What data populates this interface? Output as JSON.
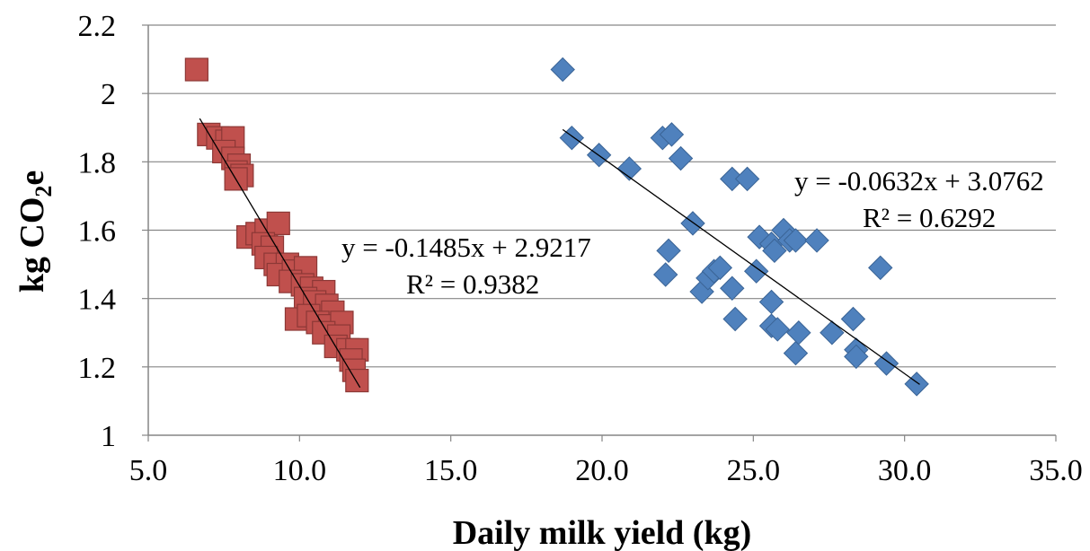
{
  "chart_data": {
    "type": "scatter",
    "xlabel": "Daily milk yield (kg)",
    "ylabel": {
      "prefix": "kg CO",
      "sub": "2",
      "suffix": "e"
    },
    "xlim": [
      5.0,
      35.0
    ],
    "ylim": [
      1.0,
      2.2
    ],
    "x_ticks": [
      "5.0",
      "10.0",
      "15.0",
      "20.0",
      "25.0",
      "30.0",
      "35.0"
    ],
    "y_ticks": [
      "1",
      "1.2",
      "1.4",
      "1.6",
      "1.8",
      "2",
      "2.2"
    ],
    "grid": "horizontal",
    "series": [
      {
        "marker": "square",
        "color": "#c0504d",
        "edge_color": "#8c3836",
        "points": [
          [
            6.6,
            2.07
          ],
          [
            7.0,
            1.88
          ],
          [
            7.3,
            1.87
          ],
          [
            7.6,
            1.86
          ],
          [
            7.8,
            1.87
          ],
          [
            7.5,
            1.83
          ],
          [
            7.8,
            1.81
          ],
          [
            8.0,
            1.79
          ],
          [
            7.9,
            1.77
          ],
          [
            8.1,
            1.76
          ],
          [
            7.9,
            1.75
          ],
          [
            8.3,
            1.58
          ],
          [
            8.6,
            1.59
          ],
          [
            8.9,
            1.6
          ],
          [
            9.3,
            1.62
          ],
          [
            8.8,
            1.56
          ],
          [
            9.1,
            1.55
          ],
          [
            8.9,
            1.52
          ],
          [
            9.2,
            1.5
          ],
          [
            9.6,
            1.5
          ],
          [
            9.3,
            1.47
          ],
          [
            9.8,
            1.48
          ],
          [
            10.2,
            1.49
          ],
          [
            9.7,
            1.45
          ],
          [
            10.1,
            1.44
          ],
          [
            10.4,
            1.43
          ],
          [
            10.8,
            1.42
          ],
          [
            10.2,
            1.4
          ],
          [
            10.5,
            1.39
          ],
          [
            10.9,
            1.38
          ],
          [
            11.1,
            1.36
          ],
          [
            9.9,
            1.34
          ],
          [
            10.3,
            1.35
          ],
          [
            10.6,
            1.33
          ],
          [
            11.0,
            1.32
          ],
          [
            11.4,
            1.33
          ],
          [
            10.8,
            1.3
          ],
          [
            11.3,
            1.29
          ],
          [
            11.2,
            1.26
          ],
          [
            11.6,
            1.25
          ],
          [
            11.9,
            1.25
          ],
          [
            11.7,
            1.22
          ],
          [
            11.8,
            1.19
          ],
          [
            11.9,
            1.16
          ]
        ]
      },
      {
        "marker": "diamond",
        "color": "#4f81bd",
        "edge_color": "#3a6496",
        "points": [
          [
            18.7,
            2.07
          ],
          [
            19.0,
            1.87
          ],
          [
            19.9,
            1.82
          ],
          [
            20.9,
            1.78
          ],
          [
            22.0,
            1.87
          ],
          [
            22.3,
            1.88
          ],
          [
            22.6,
            1.81
          ],
          [
            24.3,
            1.75
          ],
          [
            24.8,
            1.75
          ],
          [
            23.0,
            1.62
          ],
          [
            22.2,
            1.54
          ],
          [
            22.1,
            1.47
          ],
          [
            23.3,
            1.42
          ],
          [
            23.5,
            1.46
          ],
          [
            23.7,
            1.48
          ],
          [
            23.9,
            1.49
          ],
          [
            24.3,
            1.43
          ],
          [
            24.4,
            1.34
          ],
          [
            25.1,
            1.48
          ],
          [
            25.2,
            1.58
          ],
          [
            25.6,
            1.56
          ],
          [
            25.7,
            1.54
          ],
          [
            26.0,
            1.6
          ],
          [
            26.2,
            1.57
          ],
          [
            26.4,
            1.57
          ],
          [
            25.6,
            1.39
          ],
          [
            25.6,
            1.32
          ],
          [
            25.8,
            1.31
          ],
          [
            26.5,
            1.3
          ],
          [
            26.4,
            1.24
          ],
          [
            27.1,
            1.57
          ],
          [
            27.6,
            1.3
          ],
          [
            28.3,
            1.34
          ],
          [
            28.4,
            1.25
          ],
          [
            28.4,
            1.23
          ],
          [
            29.2,
            1.49
          ],
          [
            29.4,
            1.21
          ],
          [
            30.4,
            1.15
          ]
        ]
      }
    ],
    "trendlines": [
      {
        "slope": -0.1485,
        "intercept": 2.9217,
        "x_range": [
          6.7,
          12.0
        ],
        "equation": "y = -0.1485x + 2.9217",
        "r2_label": "R² = 0.9382"
      },
      {
        "slope": -0.0632,
        "intercept": 3.0762,
        "x_range": [
          18.7,
          30.5
        ],
        "equation": "y = -0.0632x + 3.0762",
        "r2_label": "R² = 0.6292"
      }
    ]
  }
}
